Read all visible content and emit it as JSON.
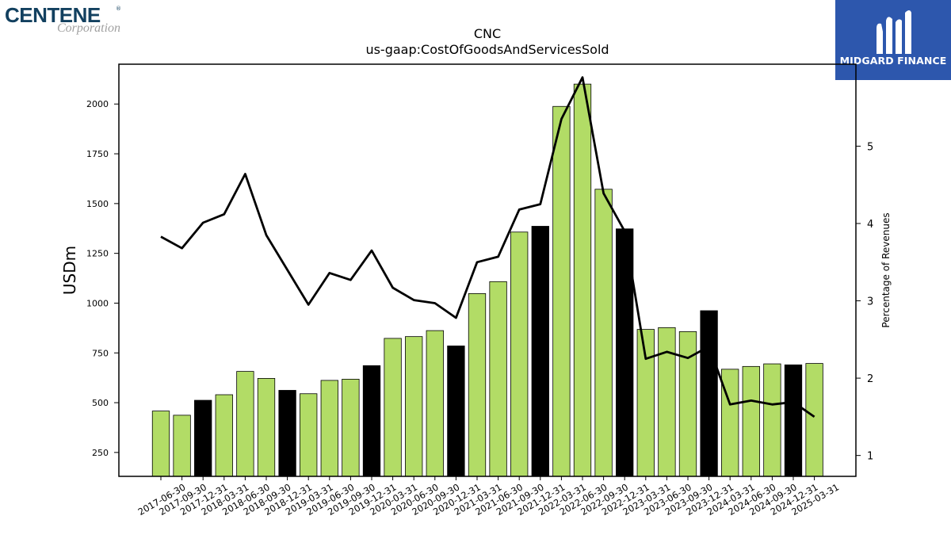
{
  "company": {
    "name": "CENTENE",
    "registered": "®",
    "subtitle": "Corporation"
  },
  "brand": {
    "name": "MIDGARD FINANCE"
  },
  "colors": {
    "bar_default": "#b2dc66",
    "bar_highlight": "#000000",
    "line": "#000000",
    "brand_bg": "#2d57ad"
  },
  "chart_data": {
    "type": "bar",
    "title": "CNC",
    "subtitle": "us-gaap:CostOfGoodsAndServicesSold",
    "ylabel": "USDm",
    "y2label": "Percentage of Revenues",
    "categories": [
      "2017-06-30",
      "2017-09-30",
      "2017-12-31",
      "2018-03-31",
      "2018-06-30",
      "2018-09-30",
      "2018-12-31",
      "2019-03-31",
      "2019-06-30",
      "2019-09-30",
      "2019-12-31",
      "2020-03-31",
      "2020-06-30",
      "2020-09-30",
      "2020-12-31",
      "2021-03-31",
      "2021-06-30",
      "2021-09-30",
      "2021-12-31",
      "2022-03-31",
      "2022-06-30",
      "2022-09-30",
      "2022-12-31",
      "2023-03-31",
      "2023-06-30",
      "2023-09-30",
      "2023-12-31",
      "2024-03-31",
      "2024-06-30",
      "2024-09-30",
      "2024-12-31",
      "2025-03-31"
    ],
    "series": [
      {
        "values": [
          458,
          437,
          512,
          540,
          657,
          622,
          562,
          545,
          612,
          618,
          686,
          823,
          832,
          862,
          785,
          1048,
          1108,
          1357,
          1386,
          1988,
          2100,
          1572,
          1373,
          868,
          877,
          857,
          962,
          668,
          682,
          695,
          690,
          697
        ]
      },
      {
        "type": "line",
        "axis": "right",
        "values": [
          3.83,
          3.68,
          4.01,
          4.12,
          4.64,
          3.85,
          3.4,
          2.95,
          3.36,
          3.27,
          3.65,
          3.17,
          3.01,
          2.97,
          2.78,
          3.5,
          3.57,
          4.18,
          4.25,
          5.35,
          5.89,
          4.39,
          3.9,
          2.25,
          2.34,
          2.26,
          2.41,
          1.66,
          1.71,
          1.66,
          1.69,
          1.5
        ]
      }
    ],
    "highlight_indices": [
      2,
      6,
      10,
      14,
      18,
      22,
      26,
      30
    ],
    "ylim": [
      130,
      2200
    ],
    "y2lim": [
      0.73,
      6.06
    ],
    "yticks": [
      250,
      500,
      750,
      1000,
      1250,
      1500,
      1750,
      2000
    ],
    "y2ticks": [
      1,
      2,
      3,
      4,
      5
    ],
    "grid": false,
    "legend": "none"
  }
}
